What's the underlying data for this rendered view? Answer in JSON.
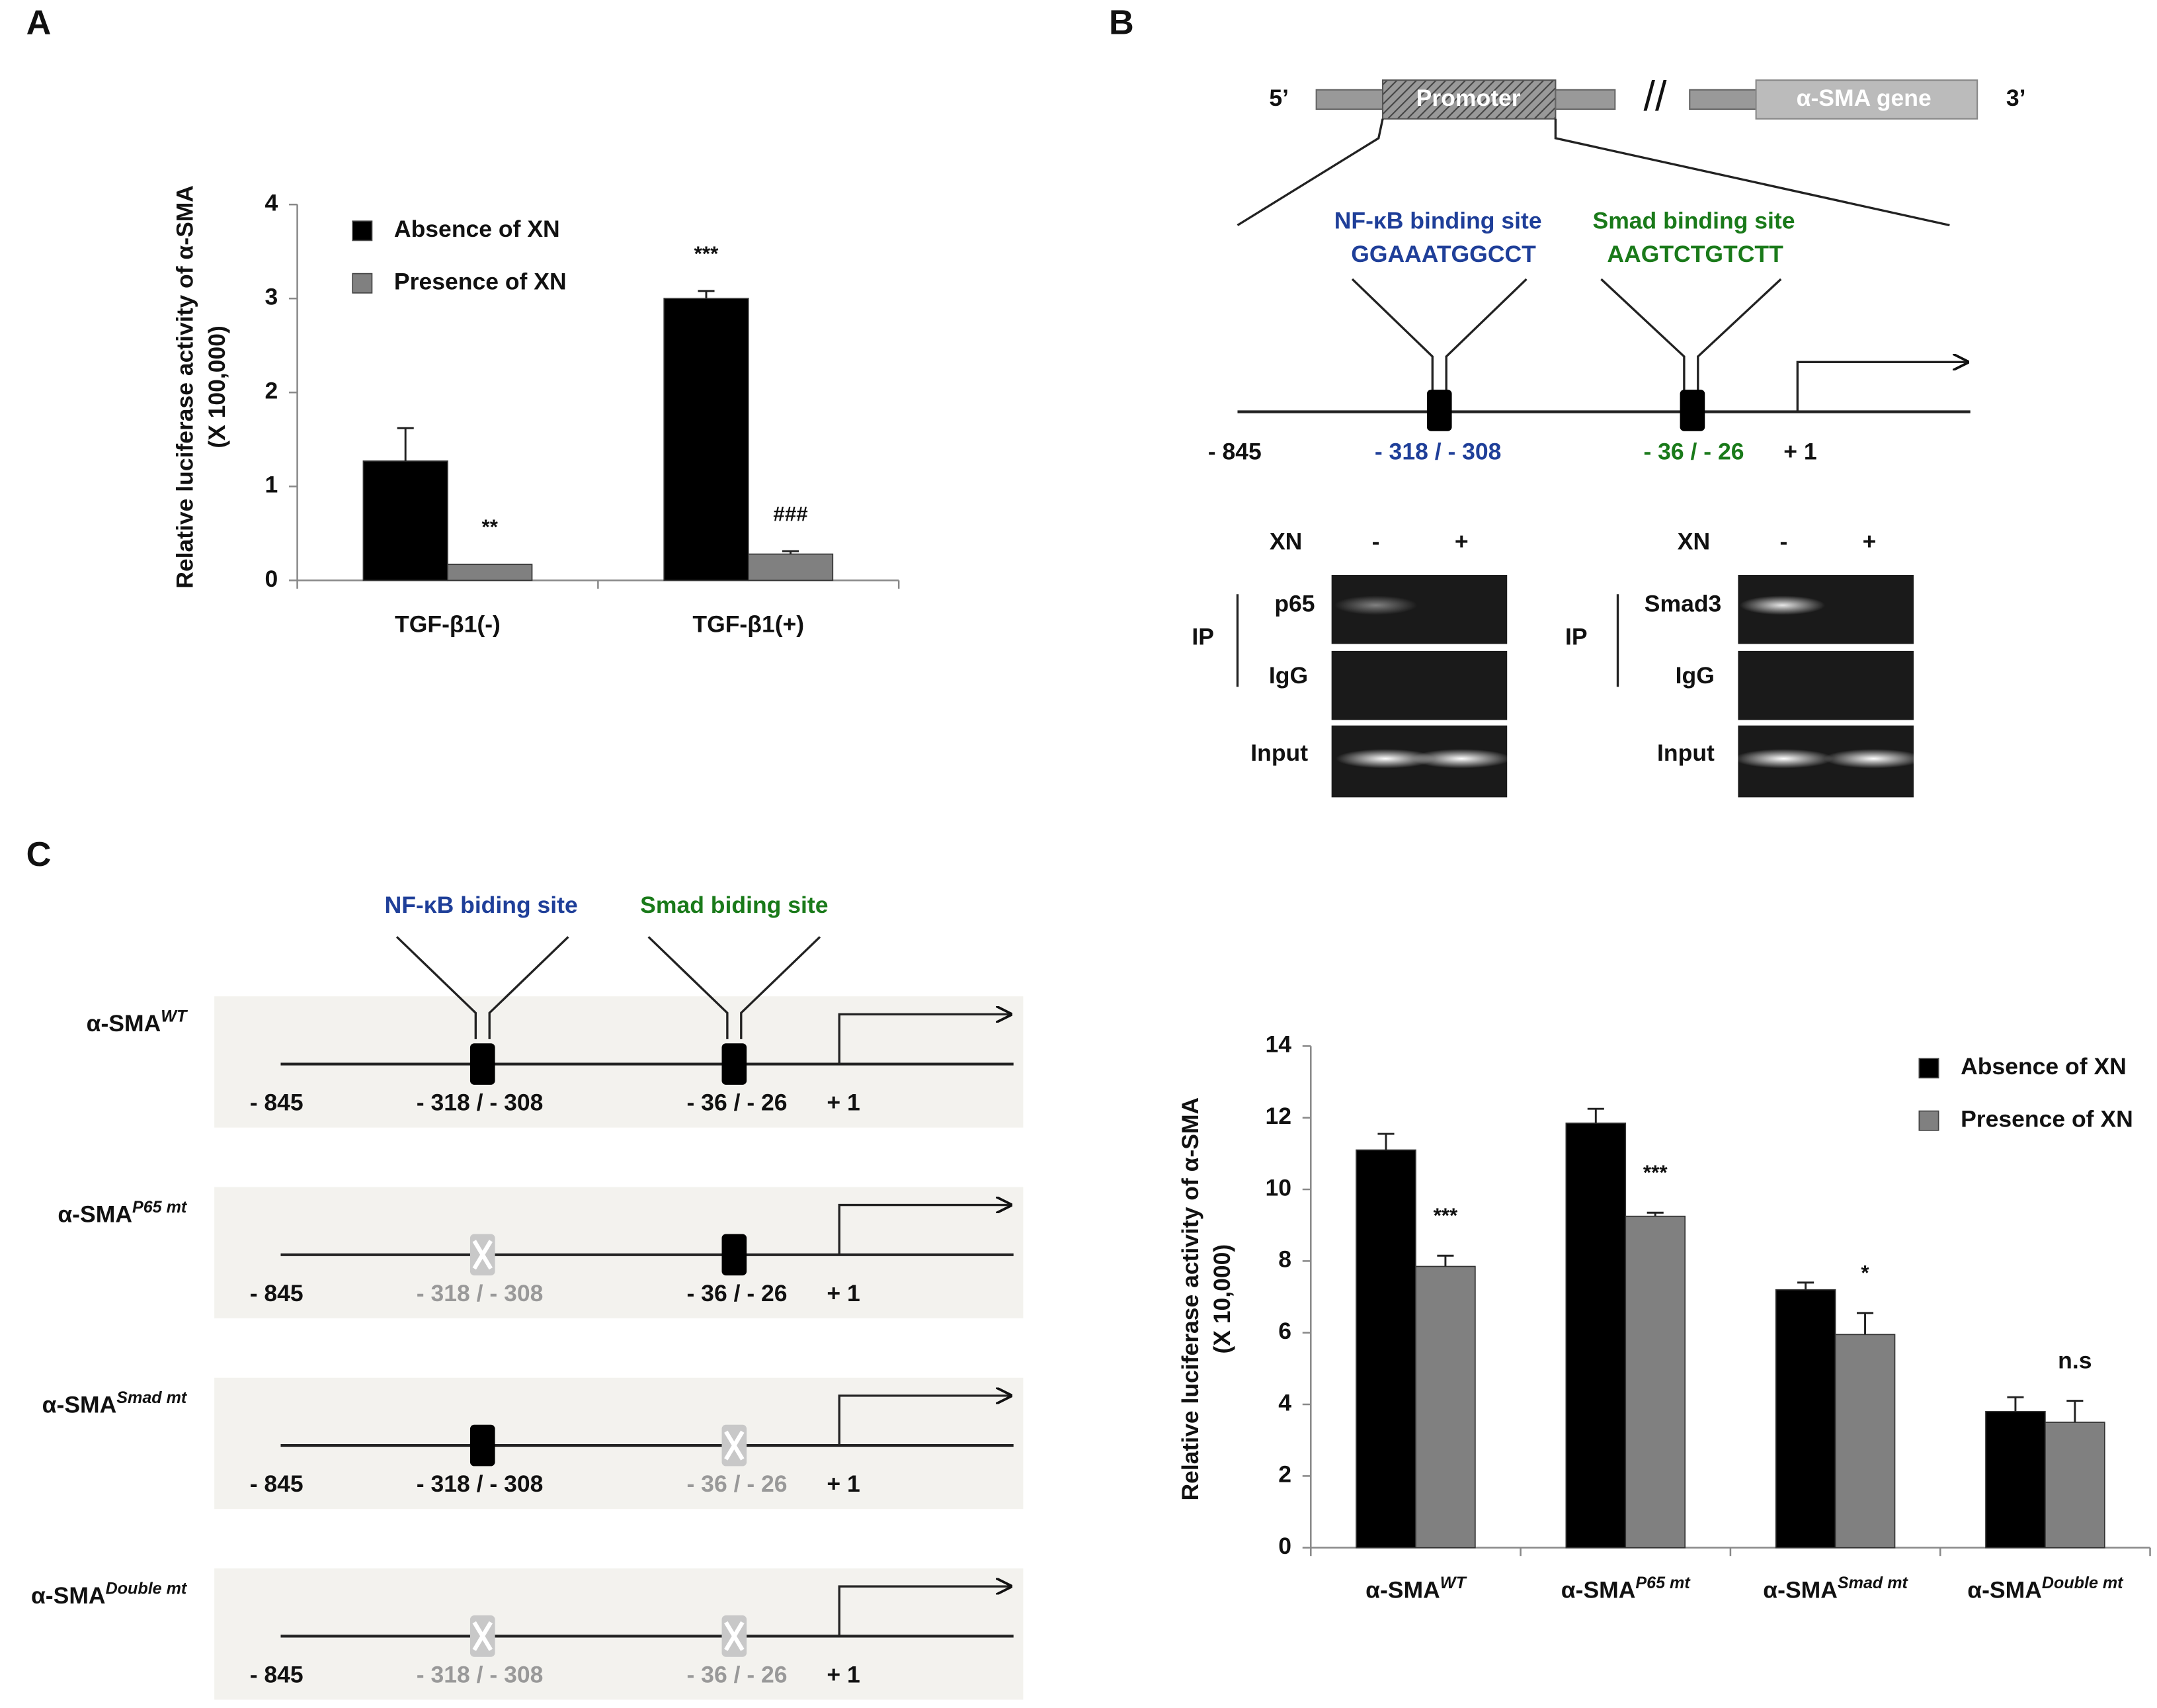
{
  "panels": [
    "A",
    "B",
    "C"
  ],
  "chart_data": [
    {
      "type": "bar",
      "ylabel": [
        "Relative luciferase activity of α-SMA",
        "(X 100,000)"
      ],
      "categories": [
        {
          "text": "TGF-β1(-)"
        },
        {
          "text": "TGF-β1(+)"
        }
      ],
      "series": [
        {
          "name": "Absence of XN",
          "color": "#000000",
          "values": [
            1.27,
            3.0
          ],
          "errors": [
            0.35,
            0.08
          ],
          "annotations": [
            null,
            "***"
          ]
        },
        {
          "name": "Presence of XN",
          "color": "#808080",
          "values": [
            0.17,
            0.28
          ],
          "errors": [
            null,
            0.03
          ],
          "annotations": [
            "**",
            "###"
          ]
        }
      ],
      "ylim": [
        0,
        4
      ],
      "yticks": [
        0,
        1,
        2,
        3,
        4
      ]
    },
    {
      "type": "bar",
      "ylabel": [
        "Relative luciferase activity of α-SMA",
        "(X 10,000)"
      ],
      "categories": [
        {
          "text": "α-SMA",
          "sup": "WT"
        },
        {
          "text": "α-SMA",
          "sup": "P65 mt"
        },
        {
          "text": "α-SMA",
          "sup": "Smad mt"
        },
        {
          "text": "α-SMA",
          "sup": "Double mt"
        }
      ],
      "series": [
        {
          "name": "Absence of XN",
          "color": "#000000",
          "values": [
            11.1,
            11.85,
            7.2,
            3.8
          ],
          "errors": [
            0.45,
            0.4,
            0.2,
            0.4
          ],
          "annotations": [
            null,
            null,
            null,
            null
          ]
        },
        {
          "name": "Presence of XN",
          "color": "#808080",
          "values": [
            7.85,
            9.25,
            5.95,
            3.5
          ],
          "errors": [
            0.3,
            0.1,
            0.6,
            0.6
          ],
          "annotations": [
            "***",
            "***",
            "*",
            "n.s"
          ]
        }
      ],
      "ylim": [
        0,
        14
      ],
      "yticks": [
        0,
        2,
        4,
        6,
        8,
        10,
        12,
        14
      ]
    }
  ],
  "diagram_b": {
    "five_prime": "5’",
    "promoter": "Promoter",
    "gene": "α-SMA gene",
    "three_prime": "3’",
    "break": "//",
    "nfkb_site": "NF-κB binding site",
    "nfkb_seq": "GGAAATGGCCT",
    "smad_site": "Smad binding site",
    "smad_seq": "AAGTCTGTCTT",
    "start": "- 845",
    "nfkb_pos": "- 318 / - 308",
    "smad_pos": "- 36 / - 26",
    "tss": "+ 1",
    "gels": [
      {
        "xn": "XN",
        "minus": "-",
        "plus": "+",
        "ip": "IP",
        "antibody": "p65",
        "igg": "IgG",
        "input": "Input"
      },
      {
        "xn": "XN",
        "minus": "-",
        "plus": "+",
        "ip": "IP",
        "antibody": "Smad3",
        "igg": "IgG",
        "input": "Input"
      }
    ]
  },
  "diagram_c": {
    "nfkb_site": "NF-κB biding site",
    "smad_site": "Smad biding site",
    "rows": [
      {
        "name": "α-SMA",
        "sup": "WT",
        "start": "- 845",
        "site1": "- 318 / - 308",
        "site2": "- 36 / - 26",
        "tss": "+ 1",
        "site1_mutated": false,
        "site2_mutated": false
      },
      {
        "name": "α-SMA",
        "sup": "P65 mt",
        "start": "- 845",
        "site1": "- 318 / - 308",
        "site2": "- 36 / - 26",
        "tss": "+ 1",
        "site1_mutated": true,
        "site2_mutated": false
      },
      {
        "name": "α-SMA",
        "sup": "Smad mt",
        "start": "- 845",
        "site1": "- 318 / - 308",
        "site2": "- 36 / - 26",
        "tss": "+ 1",
        "site1_mutated": false,
        "site2_mutated": true
      },
      {
        "name": "α-SMA",
        "sup": "Double mt",
        "start": "- 845",
        "site1": "- 318 / - 308",
        "site2": "- 36 / - 26",
        "tss": "+ 1",
        "site1_mutated": true,
        "site2_mutated": true
      }
    ]
  }
}
